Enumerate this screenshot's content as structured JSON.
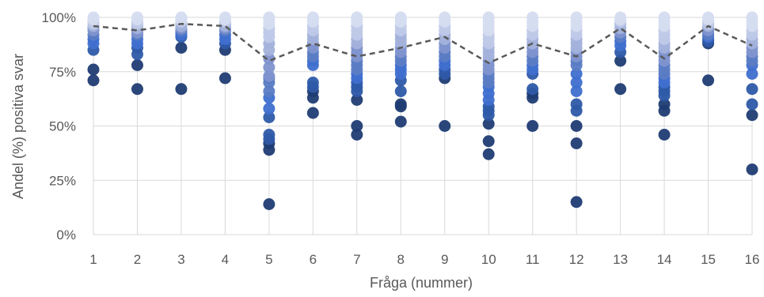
{
  "chart_data": {
    "type": "scatter",
    "title": "",
    "xlabel": "Fråga (nummer)",
    "ylabel": "Andel (%) positiva svar",
    "x_ticks": [
      "1",
      "2",
      "3",
      "4",
      "5",
      "6",
      "7",
      "8",
      "9",
      "10",
      "11",
      "12",
      "13",
      "14",
      "15",
      "16"
    ],
    "y_ticks": [
      "0%",
      "25%",
      "50%",
      "75%",
      "100%"
    ],
    "ylim": [
      0,
      100
    ],
    "xlim": [
      1,
      16
    ],
    "grid": "vertical and horizontal",
    "legend": "none",
    "colors": [
      "#1f3c73",
      "#2e5aa8",
      "#3f6fcf",
      "#5b7cc4",
      "#7f93cf",
      "#a3b2db",
      "#bfc9e8",
      "#d5dcf0"
    ],
    "average_line": {
      "style": "dashed",
      "color": "#595959",
      "values": [
        96,
        94,
        97,
        96,
        80,
        88,
        82,
        86,
        91,
        79,
        88,
        82,
        95,
        81,
        96,
        87
      ]
    },
    "points": [
      {
        "q": 1,
        "v": [
          100,
          99,
          98,
          97,
          96,
          95,
          94,
          92,
          90,
          88,
          85,
          76,
          71
        ]
      },
      {
        "q": 2,
        "v": [
          100,
          99,
          98,
          97,
          96,
          95,
          94,
          93,
          92,
          90,
          88,
          86,
          83,
          78,
          67
        ]
      },
      {
        "q": 3,
        "v": [
          100,
          99,
          98,
          97,
          96,
          95,
          94,
          93,
          92,
          91,
          86,
          67
        ]
      },
      {
        "q": 4,
        "v": [
          100,
          99,
          98,
          97,
          96,
          95,
          94,
          92,
          90,
          88,
          85,
          72
        ]
      },
      {
        "q": 5,
        "v": [
          100,
          99,
          97,
          95,
          93,
          91,
          88,
          85,
          81,
          77,
          73,
          72,
          70,
          66,
          63,
          58,
          54,
          46,
          44,
          42,
          39,
          14
        ]
      },
      {
        "q": 6,
        "v": [
          100,
          99,
          98,
          96,
          94,
          92,
          90,
          88,
          86,
          84,
          82,
          80,
          78,
          70,
          68,
          66,
          63,
          56
        ]
      },
      {
        "q": 7,
        "v": [
          100,
          99,
          98,
          96,
          94,
          92,
          90,
          88,
          86,
          84,
          82,
          80,
          78,
          76,
          74,
          72,
          70,
          68,
          66,
          62,
          50,
          46
        ]
      },
      {
        "q": 8,
        "v": [
          100,
          99,
          98,
          96,
          94,
          92,
          90,
          88,
          86,
          84,
          82,
          80,
          78,
          76,
          74,
          71,
          66,
          60,
          59,
          52
        ]
      },
      {
        "q": 9,
        "v": [
          100,
          99,
          98,
          96,
          94,
          92,
          90,
          88,
          86,
          84,
          82,
          80,
          78,
          76,
          74,
          72,
          50
        ]
      },
      {
        "q": 10,
        "v": [
          100,
          98,
          96,
          94,
          92,
          90,
          88,
          86,
          84,
          82,
          80,
          78,
          76,
          74,
          72,
          70,
          68,
          65,
          62,
          59,
          57,
          55,
          51,
          43,
          37
        ]
      },
      {
        "q": 11,
        "v": [
          100,
          98,
          96,
          94,
          92,
          90,
          88,
          86,
          84,
          82,
          80,
          78,
          76,
          74,
          67,
          65,
          63,
          50
        ]
      },
      {
        "q": 12,
        "v": [
          100,
          98,
          96,
          94,
          92,
          90,
          88,
          86,
          84,
          82,
          80,
          78,
          74,
          70,
          66,
          60,
          57,
          50,
          42,
          15
        ]
      },
      {
        "q": 13,
        "v": [
          100,
          99,
          98,
          97,
          95,
          93,
          91,
          89,
          87,
          84,
          80,
          67
        ]
      },
      {
        "q": 14,
        "v": [
          100,
          98,
          96,
          94,
          92,
          90,
          88,
          86,
          84,
          82,
          80,
          78,
          76,
          74,
          72,
          70,
          68,
          66,
          64,
          60,
          57,
          46
        ]
      },
      {
        "q": 15,
        "v": [
          100,
          99,
          98,
          97,
          96,
          95,
          94,
          93,
          92,
          91,
          90,
          89,
          88,
          71
        ]
      },
      {
        "q": 16,
        "v": [
          100,
          98,
          96,
          94,
          92,
          90,
          88,
          86,
          84,
          82,
          80,
          78,
          74,
          67,
          60,
          55,
          30
        ]
      }
    ]
  }
}
